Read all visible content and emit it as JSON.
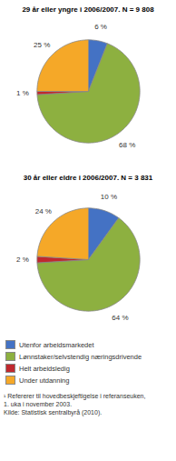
{
  "chart_data": [
    {
      "type": "pie",
      "title": "29 år eller yngre i 2006/2007. N = 9 808",
      "categories": [
        "Utenfor arbeidsmarkedet",
        "Lønnstaker/selvstendig næringsdrivende",
        "Helt arbeidsledig",
        "Under utdanning"
      ],
      "values": [
        6,
        68,
        1,
        25
      ],
      "value_labels": [
        "6 %",
        "68 %",
        "1 %",
        "25 %"
      ],
      "colors": [
        "#4472C4",
        "#8DB040",
        "#C0282E",
        "#F5A828"
      ],
      "data_labels": true,
      "legend": "bottom"
    },
    {
      "type": "pie",
      "title": "30 år eller eldre i 2006/2007. N = 3 831",
      "categories": [
        "Utenfor arbeidsmarkedet",
        "Lønnstaker/selvstendig næringsdrivende",
        "Helt arbeidsledig",
        "Under utdanning"
      ],
      "values": [
        10,
        64,
        2,
        24
      ],
      "value_labels": [
        "10 %",
        "64 %",
        "2 %",
        "24 %"
      ],
      "colors": [
        "#4472C4",
        "#8DB040",
        "#C0282E",
        "#F5A828"
      ],
      "data_labels": true,
      "legend": "bottom"
    }
  ],
  "footnote": "¹ Refererer til hovedbeskjeftigelse i referanseuken,\n1. uka i november 2003.\nKilde: Statistisk sentralbyrå (2010)."
}
